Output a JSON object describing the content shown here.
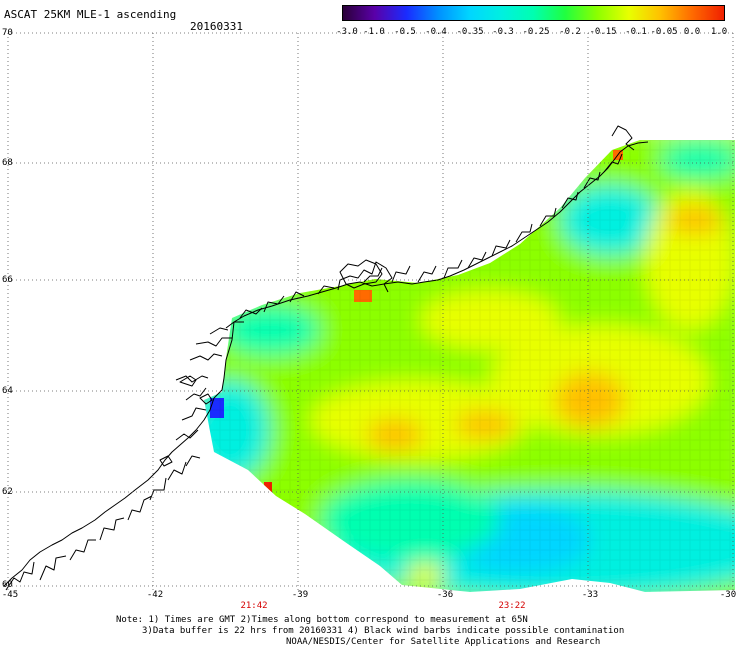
{
  "header": {
    "title": "ASCAT 25KM MLE-1 ascending",
    "date": "20160331"
  },
  "colorbar": {
    "labels": [
      "-3.0",
      "-1.0",
      "-0.5",
      "-0.4",
      "-0.35",
      "-0.3",
      "-0.25",
      "-0.2",
      "-0.15",
      "-0.1",
      "-0.05",
      "0.0",
      "1.0"
    ],
    "colors": [
      "#2a0038",
      "#5a00a8",
      "#1a2cff",
      "#0090ff",
      "#00d6ff",
      "#00f0e0",
      "#00ffb0",
      "#20ff40",
      "#8cff00",
      "#e8ff00",
      "#ffc000",
      "#ff6a00",
      "#f02000"
    ]
  },
  "axes": {
    "lat_labels": [
      "70",
      "68",
      "66",
      "64",
      "62",
      "60"
    ],
    "lon_labels": [
      "-45",
      "-42",
      "-39",
      "-36",
      "-33",
      "-30"
    ],
    "grid": true,
    "grid_style": "dotted"
  },
  "times": [
    "21:42",
    "23:22"
  ],
  "notes": [
    "Note: 1) Times are GMT 2)Times along bottom correspond to measurement at 65N",
    "3)Data buffer is 22 hrs from 20160331 4) Black wind barbs indicate possible contamination",
    "NOAA/NESDIS/Center for Satellite Applications and Research"
  ],
  "colors": {
    "land_outline": "#000000",
    "time_label": "#d40000"
  }
}
